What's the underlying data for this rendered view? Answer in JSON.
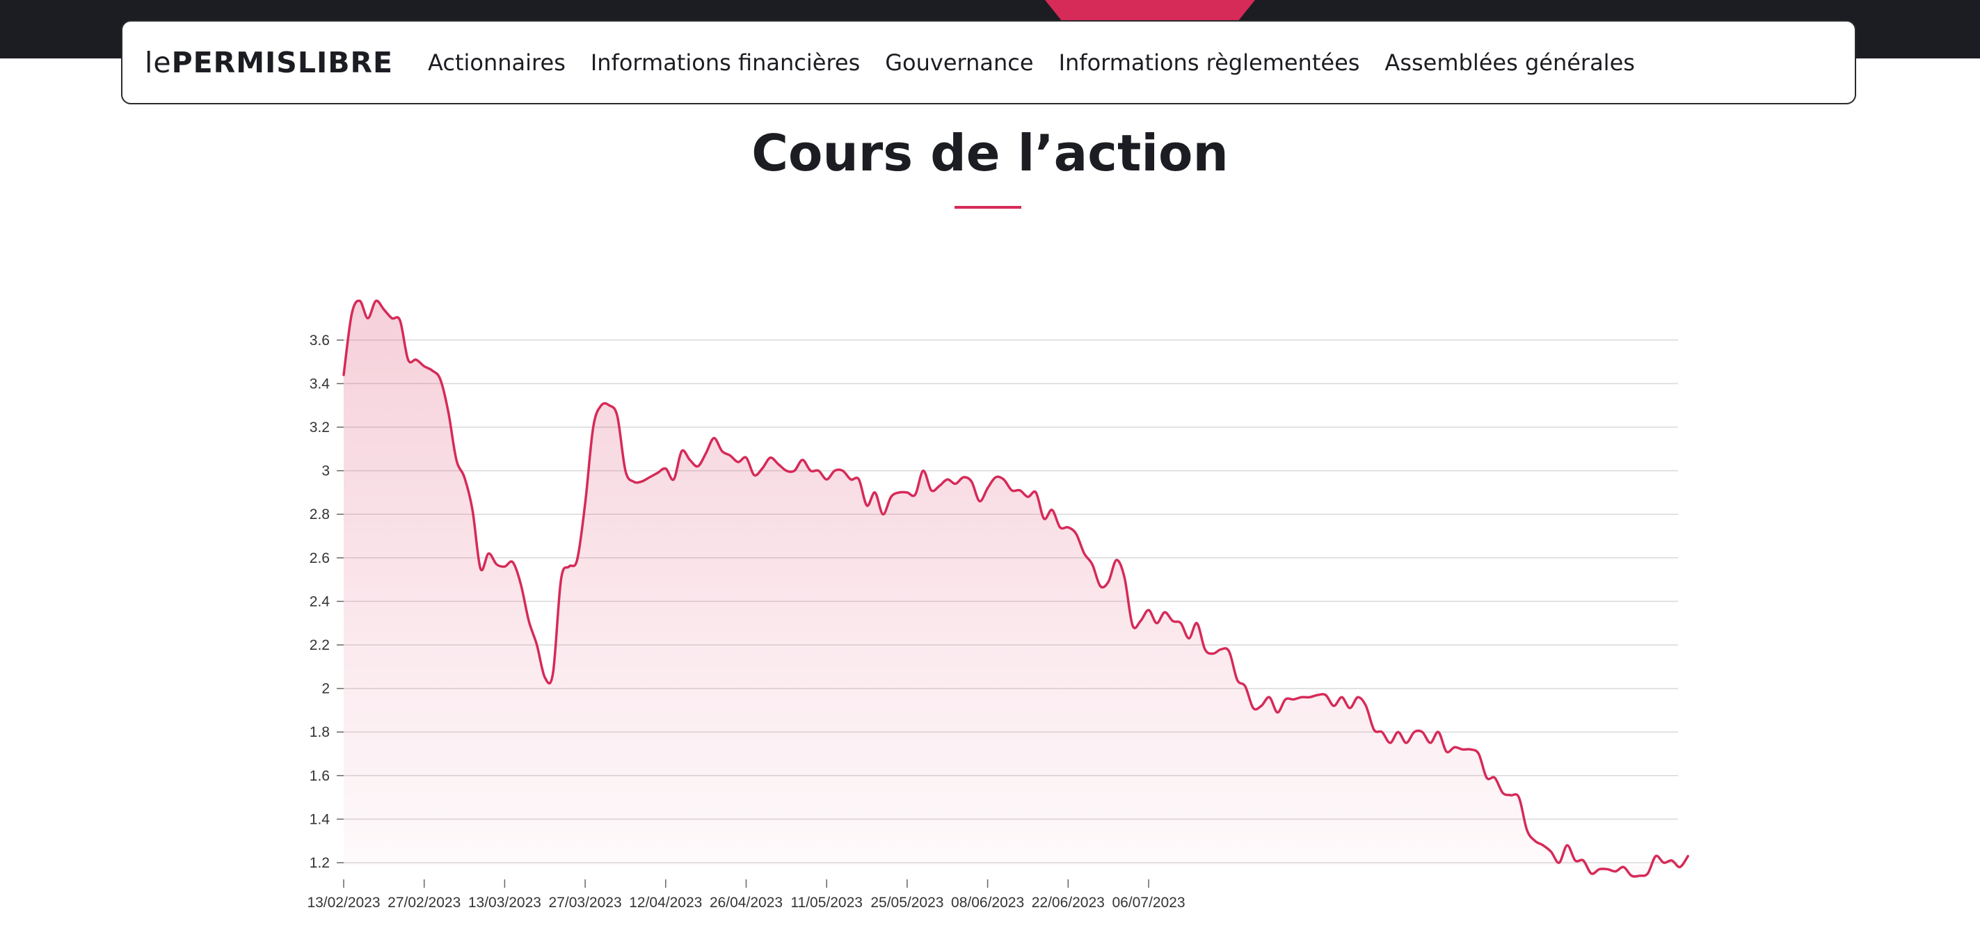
{
  "brand": {
    "logo_prefix": "le",
    "logo_main": "PERMISLIBRE"
  },
  "nav": {
    "items": [
      {
        "label": "Actionnaires"
      },
      {
        "label": "Informations financières"
      },
      {
        "label": "Gouvernance"
      },
      {
        "label": "Informations règlementées"
      },
      {
        "label": "Assemblées générales"
      }
    ]
  },
  "page": {
    "title": "Cours de l’action"
  },
  "colors": {
    "accent": "#d62a58",
    "dark": "#1c1d22",
    "grid": "#d9d9d9"
  },
  "chart_data": {
    "type": "area",
    "title": "",
    "xlabel": "",
    "ylabel": "",
    "ylim": [
      1.15,
      3.8
    ],
    "y_ticks": [
      1.2,
      1.4,
      1.6,
      1.8,
      2,
      2.2,
      2.4,
      2.6,
      2.8,
      3,
      3.2,
      3.4,
      3.6
    ],
    "y_tick_labels": [
      "1.2",
      "1.4",
      "1.6",
      "1.8",
      "2",
      "2.2",
      "2.4",
      "2.6",
      "2.8",
      "3",
      "3.2",
      "3.4",
      "3.6"
    ],
    "x_tick_labels": [
      "13/02/2023",
      "27/02/2023",
      "13/03/2023",
      "27/03/2023",
      "12/04/2023",
      "26/04/2023",
      "11/05/2023",
      "25/05/2023",
      "08/06/2023",
      "22/06/2023",
      "06/07/2023"
    ],
    "x_tick_positions": [
      0,
      10,
      20,
      30,
      40,
      50,
      60,
      70,
      80,
      90,
      100
    ],
    "grid": true,
    "series": [
      {
        "values": [
          3.44,
          3.72,
          3.78,
          3.7,
          3.78,
          3.74,
          3.7,
          3.69,
          3.51,
          3.51,
          3.48,
          3.46,
          3.42,
          3.27,
          3.05,
          2.97,
          2.82,
          2.55,
          2.62,
          2.57,
          2.56,
          2.58,
          2.48,
          2.31,
          2.2,
          2.05,
          2.07,
          2.5,
          2.56,
          2.59,
          2.85,
          3.2,
          3.3,
          3.3,
          3.25,
          3.0,
          2.95,
          2.95,
          2.97,
          2.99,
          3.01,
          2.96,
          3.09,
          3.05,
          3.02,
          3.08,
          3.15,
          3.09,
          3.07,
          3.04,
          3.06,
          2.98,
          3.01,
          3.06,
          3.03,
          3.0,
          3.0,
          3.05,
          3.0,
          3.0,
          2.96,
          3.0,
          3.0,
          2.96,
          2.96,
          2.84,
          2.9,
          2.8,
          2.88,
          2.9,
          2.9,
          2.89,
          3.0,
          2.91,
          2.93,
          2.96,
          2.94,
          2.97,
          2.95,
          2.86,
          2.92,
          2.97,
          2.96,
          2.91,
          2.91,
          2.88,
          2.9,
          2.78,
          2.82,
          2.74,
          2.74,
          2.71,
          2.62,
          2.57,
          2.47,
          2.49,
          2.59,
          2.51,
          2.29,
          2.31,
          2.36,
          2.3,
          2.35,
          2.31,
          2.3,
          2.23,
          2.3,
          2.18,
          2.16,
          2.18,
          2.17,
          2.04,
          2.01,
          1.91,
          1.92,
          1.96,
          1.89,
          1.95,
          1.95,
          1.96,
          1.96,
          1.97,
          1.97,
          1.92,
          1.96,
          1.91,
          1.96,
          1.92,
          1.81,
          1.8,
          1.75,
          1.8,
          1.75,
          1.8,
          1.8,
          1.75,
          1.8,
          1.71,
          1.73,
          1.72,
          1.72,
          1.7,
          1.59,
          1.59,
          1.52,
          1.51,
          1.5,
          1.35,
          1.3,
          1.28,
          1.25,
          1.2,
          1.28,
          1.21,
          1.21,
          1.15,
          1.17,
          1.17,
          1.16,
          1.18,
          1.14,
          1.14,
          1.15,
          1.23,
          1.2,
          1.21,
          1.18,
          1.23
        ]
      }
    ]
  }
}
